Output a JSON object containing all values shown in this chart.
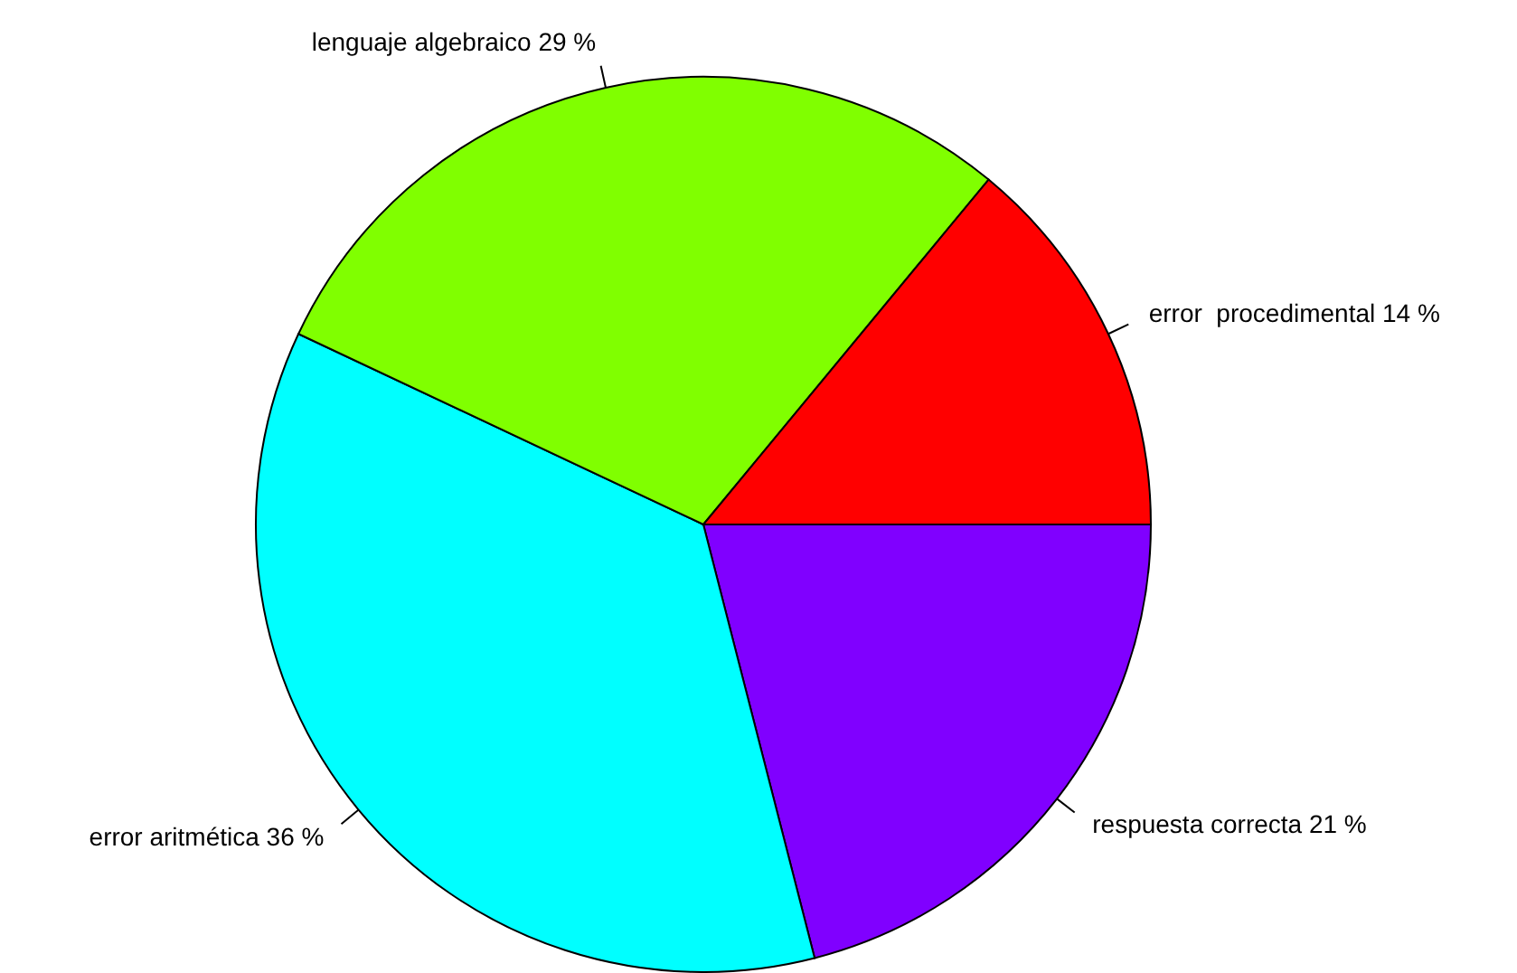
{
  "chart_data": {
    "type": "pie",
    "categories": [
      "error  procedimental 14 %",
      "lenguaje algebraico 29 %",
      "error aritmética 36 %",
      "respuesta correcta 21 %"
    ],
    "values": [
      14,
      29,
      36,
      21
    ],
    "colors": [
      "#ff0000",
      "#80ff00",
      "#00ffff",
      "#8000ff"
    ],
    "legend": false
  }
}
